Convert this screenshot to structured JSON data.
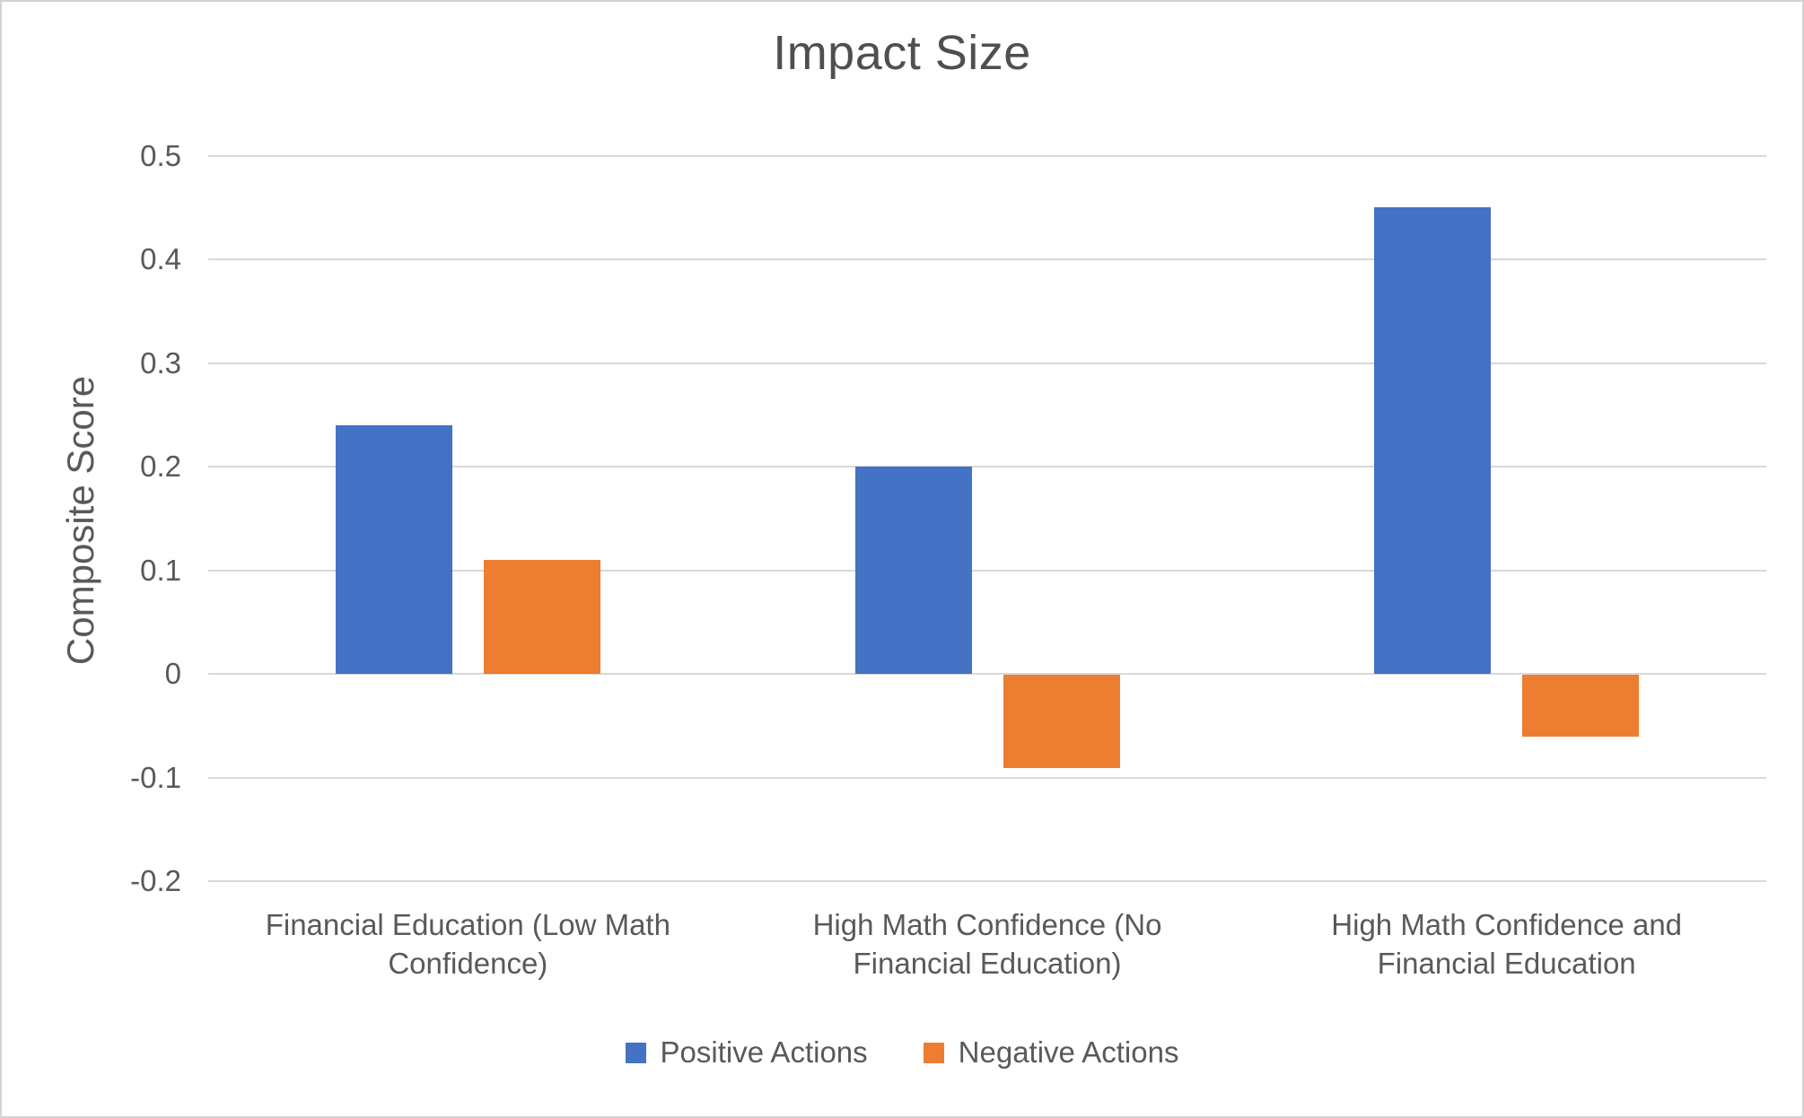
{
  "chart_data": {
    "type": "bar",
    "title": "Impact Size",
    "ylabel": "Composite Score",
    "xlabel": "",
    "categories": [
      "Financial Education (Low Math\nConfidence)",
      "High Math Confidence (No\nFinancial Education)",
      "High Math Confidence and\nFinancial Education"
    ],
    "series": [
      {
        "name": "Positive Actions",
        "values": [
          0.24,
          0.2,
          0.45
        ],
        "color": "#4472C4"
      },
      {
        "name": "Negative Actions",
        "values": [
          0.11,
          -0.09,
          -0.06
        ],
        "color": "#ED7D31"
      }
    ],
    "y_axis": {
      "min": -0.2,
      "max": 0.5,
      "tick_step": 0.1,
      "tick_labels": [
        "0.5",
        "0.4",
        "0.3",
        "0.2",
        "0.1",
        "0",
        "-0.1",
        "-0.2"
      ]
    },
    "grid": true,
    "legend_position": "bottom",
    "colors": {
      "gridline": "#d9d9d9",
      "text": "#595959",
      "canvas_border": "#d3d3d3",
      "background": "#ffffff"
    }
  }
}
